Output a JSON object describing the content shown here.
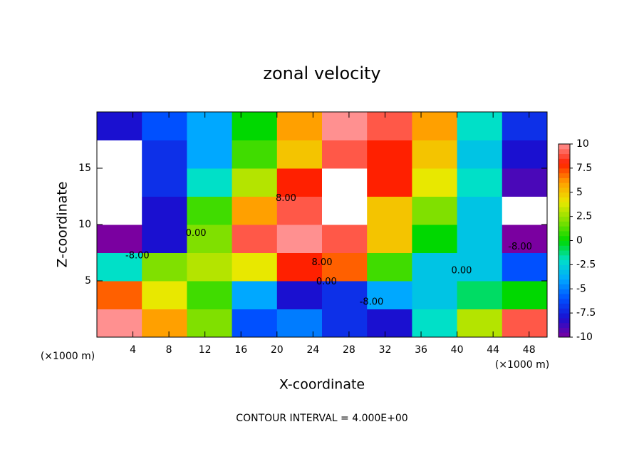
{
  "chart_data": {
    "type": "heatmap",
    "title": "zonal velocity",
    "xlabel": "X-coordinate",
    "ylabel": "Z-coordinate",
    "x_unit": "(×1000 m)",
    "footnote": "CONTOUR INTERVAL = 4.000E+00",
    "x": [
      2.5,
      7.5,
      12.5,
      17.5,
      22.5,
      27.5,
      32.5,
      37.5,
      42.5,
      47.5
    ],
    "y": [
      1.25,
      3.75,
      6.25,
      8.75,
      11.25,
      13.75,
      16.25,
      18.75
    ],
    "z": [
      [
        10,
        6,
        2,
        -6,
        -5,
        -7,
        -8,
        -2,
        3,
        9
      ],
      [
        7,
        4,
        1,
        -4,
        -8,
        -7,
        -4,
        -3,
        -1,
        0
      ],
      [
        -2,
        2,
        3,
        4,
        8,
        7,
        1,
        -3,
        -3,
        -6
      ],
      [
        -10,
        -8,
        2,
        9,
        10,
        9,
        5,
        0,
        -3,
        -10
      ],
      [
        -12,
        -8,
        1,
        6,
        9,
        11,
        5,
        2,
        -3,
        -12
      ],
      [
        -12,
        -7,
        -2,
        3,
        8,
        11,
        8,
        4,
        -2,
        -9
      ],
      [
        -11,
        -7,
        -4,
        1,
        5,
        9,
        8,
        5,
        -3,
        -8
      ],
      [
        -8,
        -6,
        -4,
        0,
        6,
        10,
        9,
        6,
        -2,
        -7
      ]
    ],
    "xlim": [
      0,
      50
    ],
    "ylim": [
      0,
      20
    ],
    "xticks": [
      4,
      8,
      12,
      16,
      20,
      24,
      28,
      32,
      36,
      40,
      44,
      48
    ],
    "yticks": [
      5,
      10,
      15
    ],
    "clim": [
      -10,
      10
    ],
    "cticks": [
      10,
      7.5,
      5,
      2.5,
      0,
      -2.5,
      -5,
      -7.5,
      -10
    ],
    "colormap": [
      "#7a00a0",
      "#1a10d0",
      "#0050ff",
      "#00a8ff",
      "#00e0c8",
      "#00d800",
      "#80e000",
      "#e8e800",
      "#ffa000",
      "#ff2000",
      "#ff9090"
    ],
    "out_of_range_color": "#ffffff",
    "contour_labels": [
      {
        "label": "8.00",
        "x": 21,
        "y": 12.3
      },
      {
        "label": "8.00",
        "x": 25,
        "y": 6.6
      },
      {
        "label": "0.00",
        "x": 25.5,
        "y": 4.9
      },
      {
        "label": "0.00",
        "x": 11,
        "y": 9.2
      },
      {
        "label": "0.00",
        "x": 40.5,
        "y": 5.9
      },
      {
        "label": "-8.00",
        "x": 4.5,
        "y": 7.2
      },
      {
        "label": "-8.00",
        "x": 30.5,
        "y": 3.1
      },
      {
        "label": "-8.00",
        "x": 47,
        "y": 8
      }
    ]
  }
}
